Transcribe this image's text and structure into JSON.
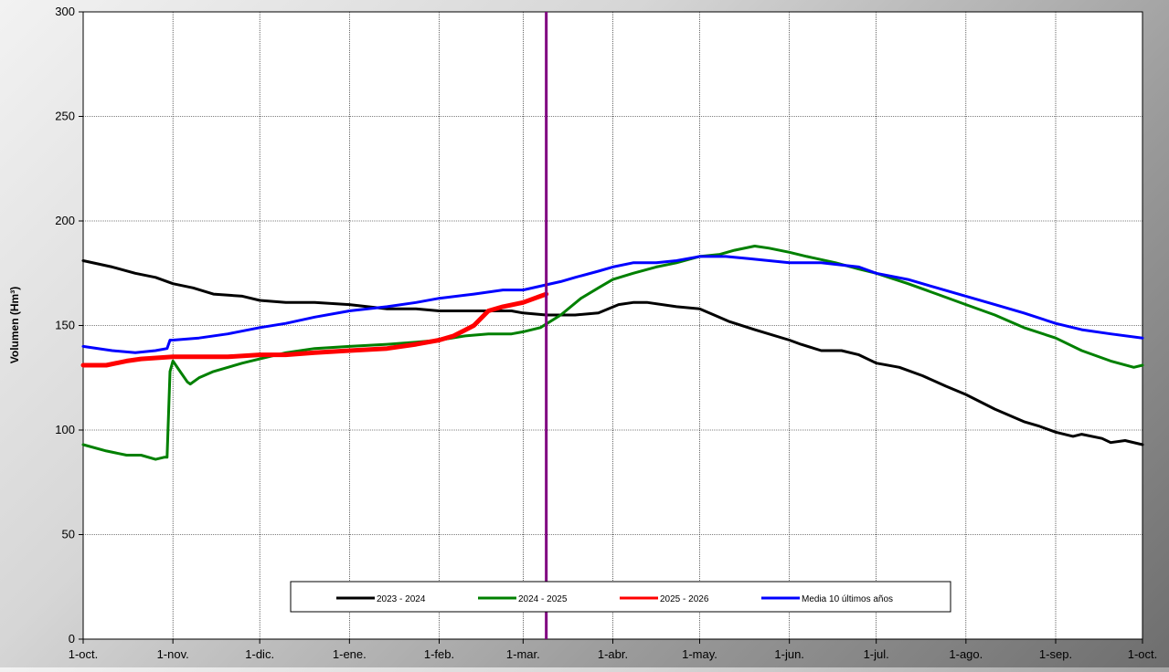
{
  "chart_data": {
    "type": "line",
    "title": "",
    "xlabel": "",
    "ylabel": "Volumen (Hm³)",
    "x_domain": [
      0,
      366
    ],
    "ylim": [
      0,
      300
    ],
    "y_ticks": [
      0,
      50,
      100,
      150,
      200,
      250,
      300
    ],
    "x_ticks": [
      {
        "day": 0,
        "label": "1-oct."
      },
      {
        "day": 31,
        "label": "1-nov."
      },
      {
        "day": 61,
        "label": "1-dic."
      },
      {
        "day": 92,
        "label": "1-ene."
      },
      {
        "day": 123,
        "label": "1-feb."
      },
      {
        "day": 152,
        "label": "1-mar."
      },
      {
        "day": 183,
        "label": "1-abr."
      },
      {
        "day": 213,
        "label": "1-may."
      },
      {
        "day": 244,
        "label": "1-jun."
      },
      {
        "day": 274,
        "label": "1-jul."
      },
      {
        "day": 305,
        "label": "1-ago."
      },
      {
        "day": 336,
        "label": "1-sep."
      },
      {
        "day": 366,
        "label": "1-oct."
      }
    ],
    "grid": true,
    "legend_position": "bottom-center",
    "marker_line": {
      "day": 160,
      "color": "#800080"
    },
    "series": [
      {
        "name": "2023 - 2024",
        "color": "#000000",
        "width": 3,
        "points": [
          [
            0,
            181
          ],
          [
            10,
            178
          ],
          [
            18,
            175
          ],
          [
            25,
            173
          ],
          [
            31,
            170
          ],
          [
            38,
            168
          ],
          [
            45,
            165
          ],
          [
            55,
            164
          ],
          [
            61,
            162
          ],
          [
            70,
            161
          ],
          [
            80,
            161
          ],
          [
            92,
            160
          ],
          [
            105,
            158
          ],
          [
            115,
            158
          ],
          [
            123,
            157
          ],
          [
            135,
            157
          ],
          [
            148,
            157
          ],
          [
            152,
            156
          ],
          [
            160,
            155
          ],
          [
            170,
            155
          ],
          [
            178,
            156
          ],
          [
            185,
            160
          ],
          [
            190,
            161
          ],
          [
            195,
            161
          ],
          [
            205,
            159
          ],
          [
            213,
            158
          ],
          [
            218,
            155
          ],
          [
            223,
            152
          ],
          [
            232,
            148
          ],
          [
            244,
            143
          ],
          [
            248,
            141
          ],
          [
            255,
            138
          ],
          [
            262,
            138
          ],
          [
            268,
            136
          ],
          [
            274,
            132
          ],
          [
            282,
            130
          ],
          [
            290,
            126
          ],
          [
            298,
            121
          ],
          [
            305,
            117
          ],
          [
            315,
            110
          ],
          [
            325,
            104
          ],
          [
            330,
            102
          ],
          [
            336,
            99
          ],
          [
            342,
            97
          ],
          [
            345,
            98
          ],
          [
            352,
            96
          ],
          [
            355,
            94
          ],
          [
            360,
            95
          ],
          [
            366,
            93
          ]
        ]
      },
      {
        "name": "2024 - 2025",
        "color": "#008000",
        "width": 3,
        "points": [
          [
            0,
            93
          ],
          [
            8,
            90
          ],
          [
            15,
            88
          ],
          [
            20,
            88
          ],
          [
            25,
            86
          ],
          [
            28,
            87
          ],
          [
            29,
            87
          ],
          [
            30,
            128
          ],
          [
            31,
            133
          ],
          [
            33,
            129
          ],
          [
            36,
            123
          ],
          [
            37,
            122
          ],
          [
            40,
            125
          ],
          [
            45,
            128
          ],
          [
            55,
            132
          ],
          [
            61,
            134
          ],
          [
            70,
            137
          ],
          [
            80,
            139
          ],
          [
            92,
            140
          ],
          [
            105,
            141
          ],
          [
            115,
            142
          ],
          [
            123,
            143
          ],
          [
            132,
            145
          ],
          [
            140,
            146
          ],
          [
            148,
            146
          ],
          [
            152,
            147
          ],
          [
            158,
            149
          ],
          [
            165,
            155
          ],
          [
            172,
            163
          ],
          [
            178,
            168
          ],
          [
            183,
            172
          ],
          [
            190,
            175
          ],
          [
            198,
            178
          ],
          [
            205,
            180
          ],
          [
            213,
            183
          ],
          [
            220,
            184
          ],
          [
            225,
            186
          ],
          [
            232,
            188
          ],
          [
            237,
            187
          ],
          [
            244,
            185
          ],
          [
            250,
            183
          ],
          [
            260,
            180
          ],
          [
            268,
            177
          ],
          [
            274,
            175
          ],
          [
            285,
            170
          ],
          [
            295,
            165
          ],
          [
            305,
            160
          ],
          [
            315,
            155
          ],
          [
            325,
            149
          ],
          [
            336,
            144
          ],
          [
            345,
            138
          ],
          [
            355,
            133
          ],
          [
            363,
            130
          ],
          [
            366,
            131
          ]
        ]
      },
      {
        "name": "2025 - 2026",
        "color": "#ff0000",
        "width": 5,
        "points": [
          [
            0,
            131
          ],
          [
            8,
            131
          ],
          [
            15,
            133
          ],
          [
            20,
            134
          ],
          [
            31,
            135
          ],
          [
            40,
            135
          ],
          [
            50,
            135
          ],
          [
            61,
            136
          ],
          [
            70,
            136
          ],
          [
            80,
            137
          ],
          [
            92,
            138
          ],
          [
            105,
            139
          ],
          [
            115,
            141
          ],
          [
            123,
            143
          ],
          [
            128,
            145
          ],
          [
            135,
            150
          ],
          [
            140,
            157
          ],
          [
            145,
            159
          ],
          [
            152,
            161
          ],
          [
            158,
            164
          ],
          [
            160,
            165
          ]
        ]
      },
      {
        "name": "Media 10 últimos años",
        "color": "#0000ff",
        "width": 3,
        "points": [
          [
            0,
            140
          ],
          [
            10,
            138
          ],
          [
            18,
            137
          ],
          [
            25,
            138
          ],
          [
            29,
            139
          ],
          [
            30,
            143
          ],
          [
            31,
            143
          ],
          [
            40,
            144
          ],
          [
            50,
            146
          ],
          [
            61,
            149
          ],
          [
            70,
            151
          ],
          [
            80,
            154
          ],
          [
            92,
            157
          ],
          [
            105,
            159
          ],
          [
            115,
            161
          ],
          [
            123,
            163
          ],
          [
            135,
            165
          ],
          [
            145,
            167
          ],
          [
            152,
            167
          ],
          [
            165,
            171
          ],
          [
            170,
            173
          ],
          [
            178,
            176
          ],
          [
            183,
            178
          ],
          [
            190,
            180
          ],
          [
            198,
            180
          ],
          [
            205,
            181
          ],
          [
            213,
            183
          ],
          [
            222,
            183
          ],
          [
            230,
            182
          ],
          [
            237,
            181
          ],
          [
            244,
            180
          ],
          [
            255,
            180
          ],
          [
            268,
            178
          ],
          [
            274,
            175
          ],
          [
            285,
            172
          ],
          [
            295,
            168
          ],
          [
            305,
            164
          ],
          [
            315,
            160
          ],
          [
            325,
            156
          ],
          [
            336,
            151
          ],
          [
            345,
            148
          ],
          [
            355,
            146
          ],
          [
            366,
            144
          ]
        ]
      }
    ]
  }
}
